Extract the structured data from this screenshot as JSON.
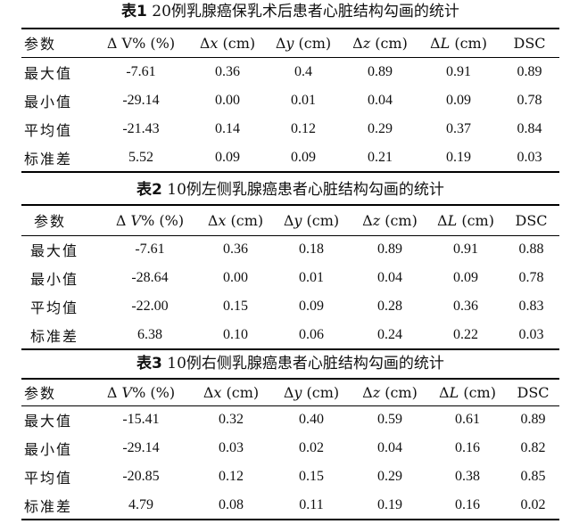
{
  "tables": [
    {
      "caption_label": "表1",
      "caption_text": " 20例乳腺癌保乳术后患者心脏结构勾画的统计",
      "headers": [
        {
          "pre": "参数",
          "var": "",
          "post": ""
        },
        {
          "pre": "Δ V% (%)",
          "var": "",
          "post": ""
        },
        {
          "pre": "Δ",
          "var": "x",
          "post": " (cm)"
        },
        {
          "pre": "Δ",
          "var": "y",
          "post": " (cm)"
        },
        {
          "pre": "Δ",
          "var": "z",
          "post": " (cm)"
        },
        {
          "pre": "Δ",
          "var": "L",
          "post": " (cm)"
        },
        {
          "pre": "DSC",
          "var": "",
          "post": ""
        }
      ],
      "rows": [
        [
          "最大值",
          "-7.61",
          "0.36",
          "0.4",
          "0.89",
          "0.91",
          "0.89"
        ],
        [
          "最小值",
          "-29.14",
          "0.00",
          "0.01",
          "0.04",
          "0.09",
          "0.78"
        ],
        [
          "平均值",
          "-21.43",
          "0.14",
          "0.12",
          "0.29",
          "0.37",
          "0.84"
        ],
        [
          "标准差",
          "5.52",
          "0.09",
          "0.09",
          "0.21",
          "0.19",
          "0.03"
        ]
      ]
    },
    {
      "caption_label": "表2",
      "caption_text": " 10例左侧乳腺癌患者心脏结构勾画的统计",
      "headers": [
        {
          "pre": "参数",
          "var": "",
          "post": ""
        },
        {
          "pre": "Δ ",
          "var": "V",
          "post": "% (%)"
        },
        {
          "pre": "Δ",
          "var": "x",
          "post": " (cm)"
        },
        {
          "pre": "Δ",
          "var": "y",
          "post": " (cm)"
        },
        {
          "pre": "Δ",
          "var": "z",
          "post": " (cm)"
        },
        {
          "pre": "Δ",
          "var": "L",
          "post": " (cm)"
        },
        {
          "pre": "DSC",
          "var": "",
          "post": ""
        }
      ],
      "rows": [
        [
          "最大值",
          "-7.61",
          "0.36",
          "0.18",
          "0.89",
          "0.91",
          "0.88"
        ],
        [
          "最小值",
          "-28.64",
          "0.00",
          "0.01",
          "0.04",
          "0.09",
          "0.78"
        ],
        [
          "平均值",
          "-22.00",
          "0.15",
          "0.09",
          "0.28",
          "0.36",
          "0.83"
        ],
        [
          "标准差",
          "6.38",
          "0.10",
          "0.06",
          "0.24",
          "0.22",
          "0.03"
        ]
      ]
    },
    {
      "caption_label": "表3",
      "caption_text": " 10例右侧乳腺癌患者心脏结构勾画的统计",
      "headers": [
        {
          "pre": "参数",
          "var": "",
          "post": ""
        },
        {
          "pre": "Δ ",
          "var": "V",
          "post": "% (%)"
        },
        {
          "pre": "Δ",
          "var": "x",
          "post": " (cm)"
        },
        {
          "pre": "Δ",
          "var": "y",
          "post": " (cm)"
        },
        {
          "pre": "Δ",
          "var": "z",
          "post": " (cm)"
        },
        {
          "pre": "Δ",
          "var": "L",
          "post": " (cm)"
        },
        {
          "pre": "DSC",
          "var": "",
          "post": ""
        }
      ],
      "rows": [
        [
          "最大值",
          "-15.41",
          "0.32",
          "0.40",
          "0.59",
          "0.61",
          "0.89"
        ],
        [
          "最小值",
          "-29.14",
          "0.03",
          "0.02",
          "0.04",
          "0.16",
          "0.82"
        ],
        [
          "平均值",
          "-20.85",
          "0.12",
          "0.15",
          "0.29",
          "0.38",
          "0.85"
        ],
        [
          "标准差",
          "4.79",
          "0.08",
          "0.11",
          "0.19",
          "0.16",
          "0.02"
        ]
      ]
    }
  ]
}
